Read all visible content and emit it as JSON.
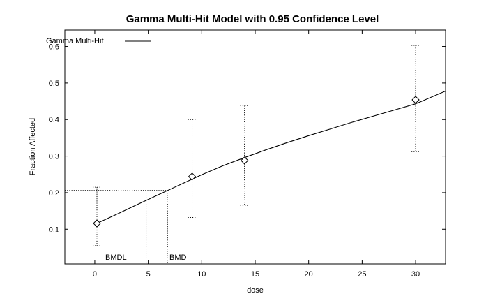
{
  "chart_data": {
    "type": "scatter",
    "title": "Gamma Multi-Hit Model with 0.95 Confidence Level",
    "xlabel": "dose",
    "ylabel": "Fraction Affected",
    "xlim": [
      -2.8,
      32.8
    ],
    "ylim": [
      0.005,
      0.645
    ],
    "x_ticks": [
      0,
      5,
      10,
      15,
      20,
      25,
      30
    ],
    "x_tick_labels": [
      "0",
      "5",
      "10",
      "15",
      "20",
      "25",
      "30"
    ],
    "y_ticks": [
      0.1,
      0.2,
      0.3,
      0.4,
      0.5,
      0.6
    ],
    "y_tick_labels": [
      "0.1",
      "0.2",
      "0.3",
      "0.4",
      "0.5",
      "0.6"
    ],
    "grid": false,
    "legend": {
      "position": "top-left",
      "entries": [
        "Gamma Multi-Hit"
      ]
    },
    "observed": [
      {
        "x": 0.2,
        "y": 0.116,
        "lower": 0.055,
        "upper": 0.215
      },
      {
        "x": 9.1,
        "y": 0.244,
        "lower": 0.132,
        "upper": 0.4
      },
      {
        "x": 14.0,
        "y": 0.288,
        "lower": 0.165,
        "upper": 0.438
      },
      {
        "x": 30.0,
        "y": 0.454,
        "lower": 0.312,
        "upper": 0.603
      }
    ],
    "series": [
      {
        "name": "Gamma Multi-Hit",
        "x": [
          0.2,
          2,
          4,
          6,
          8,
          10,
          12,
          14,
          16,
          18,
          20,
          22,
          24,
          26,
          28,
          30,
          32.8
        ],
        "y": [
          0.116,
          0.14,
          0.168,
          0.195,
          0.222,
          0.249,
          0.274,
          0.296,
          0.317,
          0.337,
          0.356,
          0.374,
          0.392,
          0.409,
          0.426,
          0.443,
          0.478
        ]
      }
    ],
    "bmr_level": 0.206,
    "bmd": 6.8,
    "bmdl": 4.8,
    "annotations": {
      "bmdl_label": "BMDL",
      "bmd_label": "BMD"
    }
  }
}
